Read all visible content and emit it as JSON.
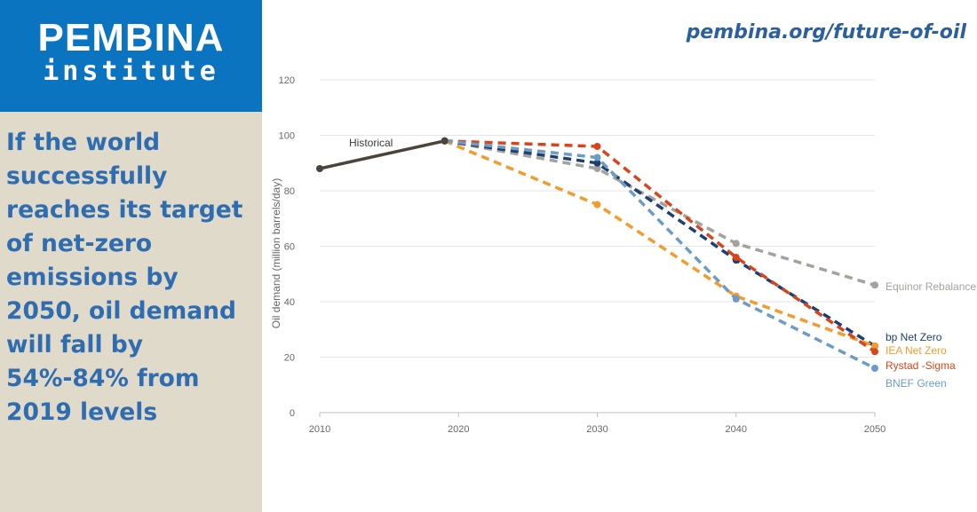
{
  "brand": {
    "name": "PEMBINA",
    "sub": "institute",
    "url": "pembina.org/future-of-oil"
  },
  "headline": "If the world successfully reaches its target of net-zero emissions by 2050, oil demand will fall by 54%-84% from 2019 levels",
  "colors": {
    "brand_blue": "#0a74c0",
    "panel_beige": "#e0dacb",
    "headline_blue": "#2f6db0"
  },
  "chart_data": {
    "type": "line",
    "ylabel": "Oil demand (million barrels/day)",
    "xlabel": "",
    "xlim": [
      2010,
      2050
    ],
    "ylim": [
      0,
      120
    ],
    "x_ticks": [
      2010,
      2020,
      2030,
      2040,
      2050
    ],
    "y_ticks": [
      0,
      20,
      40,
      60,
      80,
      100,
      120
    ],
    "grid": true,
    "series": [
      {
        "name": "Historical",
        "style": "solid",
        "color": "#4b4438",
        "points": [
          [
            2010,
            88
          ],
          [
            2019,
            98
          ]
        ]
      },
      {
        "name": "Equinor Rebalance",
        "style": "dashed",
        "color": "#a3a39d",
        "points": [
          [
            2019,
            98
          ],
          [
            2030,
            88
          ],
          [
            2040,
            61
          ],
          [
            2050,
            46
          ]
        ]
      },
      {
        "name": "bp Net Zero",
        "style": "dashed",
        "color": "#1d3f73",
        "points": [
          [
            2019,
            98
          ],
          [
            2030,
            90
          ],
          [
            2040,
            55
          ],
          [
            2050,
            24
          ]
        ]
      },
      {
        "name": "IEA Net Zero",
        "style": "dashed",
        "color": "#f39c2b",
        "points": [
          [
            2019,
            98
          ],
          [
            2030,
            75
          ],
          [
            2040,
            42
          ],
          [
            2050,
            24
          ]
        ]
      },
      {
        "name": "Rystad -Sigma",
        "style": "dashed",
        "color": "#d9451b",
        "points": [
          [
            2019,
            98
          ],
          [
            2030,
            96
          ],
          [
            2040,
            56
          ],
          [
            2050,
            22
          ]
        ]
      },
      {
        "name": "BNEF Green",
        "style": "dashed",
        "color": "#6c9cc6",
        "points": [
          [
            2019,
            98
          ],
          [
            2030,
            92
          ],
          [
            2040,
            41
          ],
          [
            2050,
            16
          ]
        ]
      }
    ]
  }
}
